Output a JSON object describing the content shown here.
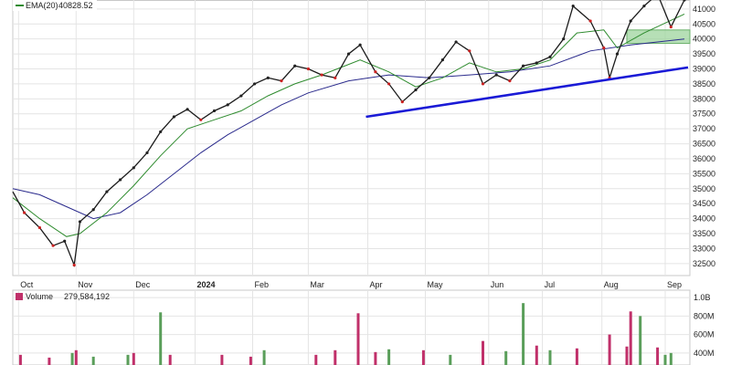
{
  "legend": {
    "ema": {
      "label": "EMA(20)",
      "value": "40828.52",
      "color": "#2e8b2e"
    },
    "volume": {
      "label": "Volume",
      "value": "279,584,192"
    }
  },
  "colors": {
    "up": "#222222",
    "down": "#cc2222",
    "ema20": "#2e8b2e",
    "ema50": "#2a2a8c",
    "trendline": "#1a1ad6",
    "zone_fill": "#9ed49e",
    "vol_up": "#5a9e5a",
    "vol_down": "#c0306a"
  },
  "chart_data": [
    {
      "type": "line",
      "x_tick_labels": [
        "Oct",
        "Nov",
        "Dec",
        "2024",
        "Feb",
        "Mar",
        "Apr",
        "May",
        "Jun",
        "Jul",
        "Aug",
        "Sep"
      ],
      "x_tick_dates": [
        "2023-10-02",
        "2023-11-01",
        "2023-12-01",
        "2024-01-02",
        "2024-02-01",
        "2024-03-01",
        "2024-04-01",
        "2024-05-01",
        "2024-06-03",
        "2024-07-01",
        "2024-08-01",
        "2024-09-03"
      ],
      "y_ticks": [
        32500,
        33000,
        33500,
        34000,
        34500,
        35000,
        35500,
        36000,
        36500,
        37000,
        37500,
        38000,
        38500,
        39000,
        39500,
        40000,
        40500,
        41000
      ],
      "ylim": [
        32100,
        41300
      ],
      "grid": true,
      "series": [
        {
          "key": "price",
          "points": [
            [
              "2023-09-29",
              34900
            ],
            [
              "2023-10-05",
              34200
            ],
            [
              "2023-10-13",
              33700
            ],
            [
              "2023-10-20",
              33100
            ],
            [
              "2023-10-26",
              33250
            ],
            [
              "2023-10-31",
              32450
            ],
            [
              "2023-11-03",
              33900
            ],
            [
              "2023-11-10",
              34300
            ],
            [
              "2023-11-17",
              34900
            ],
            [
              "2023-11-24",
              35300
            ],
            [
              "2023-12-01",
              35700
            ],
            [
              "2023-12-08",
              36200
            ],
            [
              "2023-12-15",
              36900
            ],
            [
              "2023-12-22",
              37400
            ],
            [
              "2023-12-29",
              37650
            ],
            [
              "2024-01-05",
              37300
            ],
            [
              "2024-01-12",
              37600
            ],
            [
              "2024-01-19",
              37800
            ],
            [
              "2024-01-26",
              38100
            ],
            [
              "2024-02-02",
              38500
            ],
            [
              "2024-02-09",
              38700
            ],
            [
              "2024-02-16",
              38600
            ],
            [
              "2024-02-23",
              39100
            ],
            [
              "2024-03-01",
              39000
            ],
            [
              "2024-03-08",
              38800
            ],
            [
              "2024-03-15",
              38700
            ],
            [
              "2024-03-22",
              39500
            ],
            [
              "2024-03-28",
              39800
            ],
            [
              "2024-04-05",
              38900
            ],
            [
              "2024-04-12",
              38500
            ],
            [
              "2024-04-19",
              37900
            ],
            [
              "2024-04-26",
              38300
            ],
            [
              "2024-05-03",
              38700
            ],
            [
              "2024-05-10",
              39300
            ],
            [
              "2024-05-17",
              39900
            ],
            [
              "2024-05-24",
              39600
            ],
            [
              "2024-05-31",
              38500
            ],
            [
              "2024-06-07",
              38800
            ],
            [
              "2024-06-14",
              38600
            ],
            [
              "2024-06-21",
              39100
            ],
            [
              "2024-06-28",
              39200
            ],
            [
              "2024-07-05",
              39400
            ],
            [
              "2024-07-12",
              40000
            ],
            [
              "2024-07-17",
              41100
            ],
            [
              "2024-07-26",
              40600
            ],
            [
              "2024-08-02",
              39700
            ],
            [
              "2024-08-05",
              38700
            ],
            [
              "2024-08-09",
              39500
            ],
            [
              "2024-08-16",
              40600
            ],
            [
              "2024-08-23",
              41100
            ],
            [
              "2024-08-30",
              41500
            ],
            [
              "2024-09-06",
              40400
            ],
            [
              "2024-09-13",
              41300
            ]
          ]
        },
        {
          "key": "ema20",
          "name": "EMA(20)",
          "points": [
            [
              "2023-09-29",
              34700
            ],
            [
              "2023-10-13",
              34000
            ],
            [
              "2023-10-27",
              33400
            ],
            [
              "2023-11-03",
              33500
            ],
            [
              "2023-11-17",
              34200
            ],
            [
              "2023-12-01",
              35100
            ],
            [
              "2023-12-15",
              36100
            ],
            [
              "2023-12-29",
              37000
            ],
            [
              "2024-01-12",
              37300
            ],
            [
              "2024-01-26",
              37600
            ],
            [
              "2024-02-09",
              38100
            ],
            [
              "2024-02-23",
              38500
            ],
            [
              "2024-03-08",
              38800
            ],
            [
              "2024-03-28",
              39300
            ],
            [
              "2024-04-12",
              38900
            ],
            [
              "2024-04-26",
              38400
            ],
            [
              "2024-05-10",
              38700
            ],
            [
              "2024-05-24",
              39200
            ],
            [
              "2024-06-07",
              38900
            ],
            [
              "2024-06-21",
              39000
            ],
            [
              "2024-07-05",
              39300
            ],
            [
              "2024-07-19",
              40200
            ],
            [
              "2024-08-02",
              40300
            ],
            [
              "2024-08-09",
              39700
            ],
            [
              "2024-08-23",
              40200
            ],
            [
              "2024-09-13",
              40830
            ]
          ]
        },
        {
          "key": "ema50",
          "points": [
            [
              "2023-09-29",
              35000
            ],
            [
              "2023-10-13",
              34800
            ],
            [
              "2023-10-27",
              34400
            ],
            [
              "2023-11-10",
              34000
            ],
            [
              "2023-11-24",
              34200
            ],
            [
              "2023-12-08",
              34800
            ],
            [
              "2023-12-22",
              35500
            ],
            [
              "2024-01-05",
              36200
            ],
            [
              "2024-01-19",
              36800
            ],
            [
              "2024-02-02",
              37300
            ],
            [
              "2024-02-16",
              37800
            ],
            [
              "2024-03-01",
              38200
            ],
            [
              "2024-03-22",
              38600
            ],
            [
              "2024-04-12",
              38800
            ],
            [
              "2024-05-03",
              38700
            ],
            [
              "2024-05-24",
              38800
            ],
            [
              "2024-06-14",
              38900
            ],
            [
              "2024-07-05",
              39100
            ],
            [
              "2024-07-26",
              39600
            ],
            [
              "2024-08-16",
              39800
            ],
            [
              "2024-09-13",
              40000
            ]
          ]
        },
        {
          "key": "trendline",
          "points": [
            [
              "2024-04-01",
              37400
            ],
            [
              "2024-09-13",
              39050
            ]
          ]
        }
      ],
      "zone": {
        "x": [
          "2024-08-14",
          "2024-09-13"
        ],
        "y": [
          39850,
          40300
        ]
      }
    },
    {
      "type": "bar",
      "y_ticks": [
        {
          "value": 400000000,
          "label": "400M"
        },
        {
          "value": 600000000,
          "label": "600M"
        },
        {
          "value": 800000000,
          "label": "800M"
        },
        {
          "value": 1000000000,
          "label": "1.0B"
        }
      ],
      "ylim": [
        270000000,
        1080000000
      ],
      "bars": [
        [
          "2023-10-03",
          380000000,
          "down"
        ],
        [
          "2023-10-18",
          350000000,
          "down"
        ],
        [
          "2023-10-30",
          400000000,
          "up"
        ],
        [
          "2023-11-01",
          430000000,
          "down"
        ],
        [
          "2023-11-10",
          360000000,
          "up"
        ],
        [
          "2023-11-28",
          380000000,
          "up"
        ],
        [
          "2023-12-01",
          400000000,
          "down"
        ],
        [
          "2023-12-15",
          840000000,
          "up"
        ],
        [
          "2023-12-20",
          380000000,
          "down"
        ],
        [
          "2024-01-16",
          380000000,
          "down"
        ],
        [
          "2024-01-31",
          360000000,
          "down"
        ],
        [
          "2024-02-07",
          430000000,
          "up"
        ],
        [
          "2024-03-05",
          380000000,
          "down"
        ],
        [
          "2024-03-15",
          430000000,
          "down"
        ],
        [
          "2024-03-27",
          830000000,
          "down"
        ],
        [
          "2024-04-05",
          410000000,
          "down"
        ],
        [
          "2024-04-12",
          440000000,
          "up"
        ],
        [
          "2024-04-30",
          430000000,
          "down"
        ],
        [
          "2024-05-14",
          380000000,
          "up"
        ],
        [
          "2024-05-31",
          530000000,
          "down"
        ],
        [
          "2024-06-12",
          420000000,
          "up"
        ],
        [
          "2024-06-21",
          940000000,
          "up"
        ],
        [
          "2024-06-28",
          480000000,
          "down"
        ],
        [
          "2024-07-05",
          430000000,
          "up"
        ],
        [
          "2024-07-19",
          450000000,
          "down"
        ],
        [
          "2024-08-05",
          600000000,
          "down"
        ],
        [
          "2024-08-14",
          470000000,
          "down"
        ],
        [
          "2024-08-16",
          850000000,
          "down"
        ],
        [
          "2024-08-21",
          800000000,
          "up"
        ],
        [
          "2024-08-30",
          460000000,
          "down"
        ],
        [
          "2024-09-03",
          380000000,
          "up"
        ],
        [
          "2024-09-06",
          400000000,
          "up"
        ]
      ]
    }
  ]
}
